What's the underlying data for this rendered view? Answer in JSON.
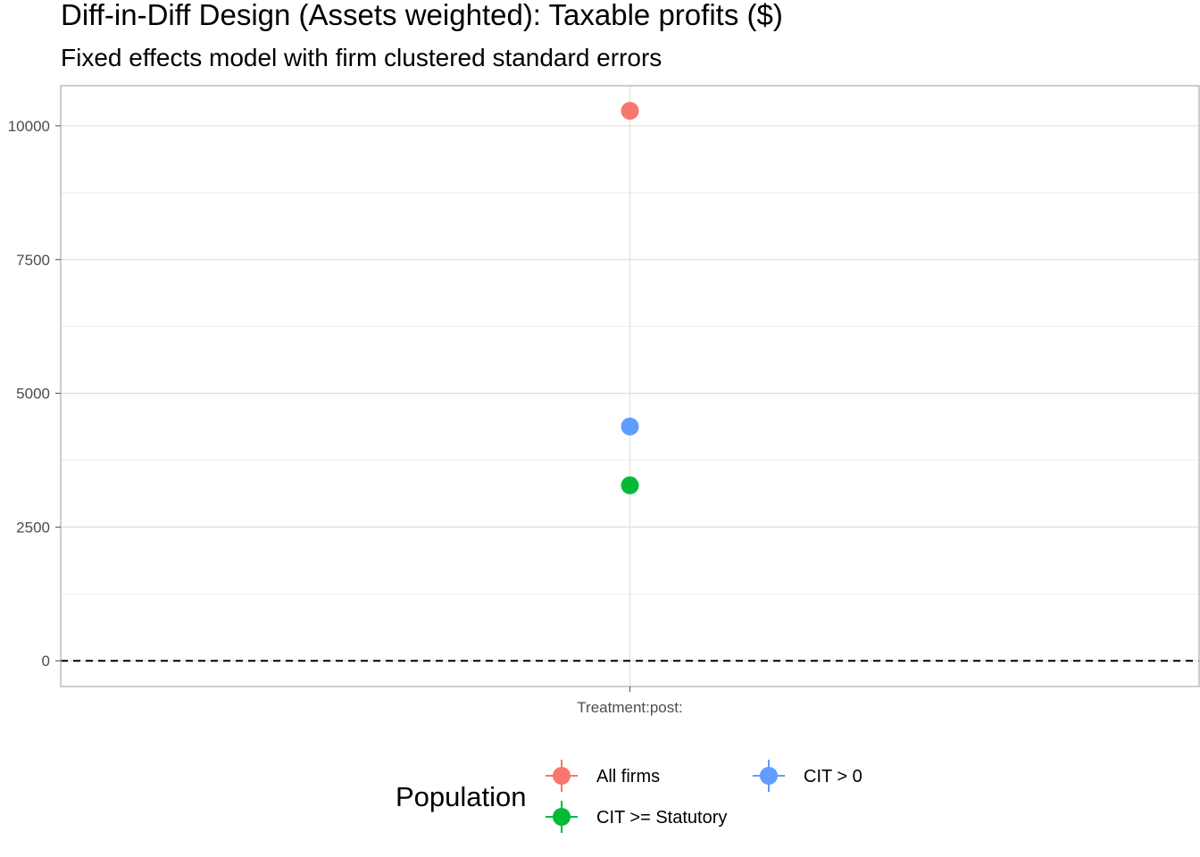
{
  "chart_data": {
    "type": "scatter",
    "title": "Diff-in-Diff Design (Assets weighted): Taxable profits  ($)",
    "subtitle": "Fixed effects model with firm clustered standard errors",
    "xlabel": "",
    "ylabel": "",
    "categories": [
      "Treatment:post:"
    ],
    "ylim": [
      -480,
      10750
    ],
    "y_ticks": [
      0,
      2500,
      5000,
      7500,
      10000
    ],
    "y_tick_labels": [
      "0",
      "2500",
      "5000",
      "7500",
      "10000"
    ],
    "reference_line": {
      "y": 0,
      "style": "dashed"
    },
    "grid": true,
    "legend": {
      "title": "Population",
      "placement": "bottom"
    },
    "series": [
      {
        "name": "All firms",
        "color": "#F8766D",
        "x": "Treatment:post:",
        "value": 10280
      },
      {
        "name": "CIT >= Statutory",
        "color": "#00BA38",
        "x": "Treatment:post:",
        "value": 3280
      },
      {
        "name": "CIT > 0",
        "color": "#619CFF",
        "x": "Treatment:post:",
        "value": 4380
      }
    ]
  }
}
